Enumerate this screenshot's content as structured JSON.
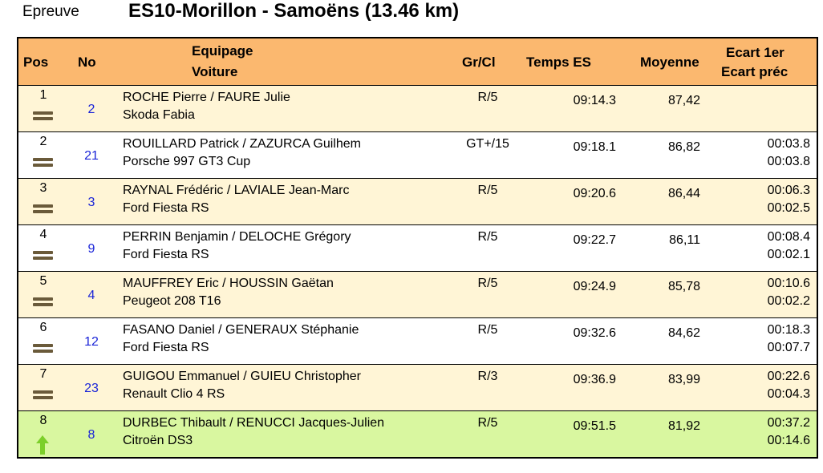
{
  "header": {
    "epreuve_label": "Epreuve",
    "stage_title": "ES10-Morillon - Samoëns (13.46 km)"
  },
  "columns": {
    "pos": "Pos",
    "no": "No",
    "crew": "Equipage",
    "car": "Voiture",
    "class": "Gr/Cl",
    "time": "Temps ES",
    "average": "Moyenne",
    "gap_first": "Ecart 1er",
    "gap_prev": "Ecart préc"
  },
  "colors": {
    "header_bg": "#fbb86f",
    "row_alt_bg": "#fff5d6",
    "row_gain_bg": "#d9f7a0",
    "number_link": "#1a24d8",
    "trend_equal": "#6a5a3a",
    "trend_up": "#7ccf2a"
  },
  "rows": [
    {
      "pos": "1",
      "no": "2",
      "crew": "ROCHE Pierre / FAURE Julie",
      "car": "Skoda Fabia",
      "class": "R/5",
      "time": "09:14.3",
      "average": "87,42",
      "gap_first": "",
      "gap_prev": "",
      "trend": "equal-icon"
    },
    {
      "pos": "2",
      "no": "21",
      "crew": "ROUILLARD Patrick / ZAZURCA Guilhem",
      "car": "Porsche 997 GT3 Cup",
      "class": "GT+/15",
      "time": "09:18.1",
      "average": "86,82",
      "gap_first": "00:03.8",
      "gap_prev": "00:03.8",
      "trend": "equal-icon"
    },
    {
      "pos": "3",
      "no": "3",
      "crew": "RAYNAL Frédéric / LAVIALE Jean-Marc",
      "car": "Ford Fiesta RS",
      "class": "R/5",
      "time": "09:20.6",
      "average": "86,44",
      "gap_first": "00:06.3",
      "gap_prev": "00:02.5",
      "trend": "equal-icon"
    },
    {
      "pos": "4",
      "no": "9",
      "crew": "PERRIN Benjamin / DELOCHE Grégory",
      "car": "Ford Fiesta RS",
      "class": "R/5",
      "time": "09:22.7",
      "average": "86,11",
      "gap_first": "00:08.4",
      "gap_prev": "00:02.1",
      "trend": "equal-icon"
    },
    {
      "pos": "5",
      "no": "4",
      "crew": "MAUFFREY Eric / HOUSSIN Gaëtan",
      "car": "Peugeot 208 T16",
      "class": "R/5",
      "time": "09:24.9",
      "average": "85,78",
      "gap_first": "00:10.6",
      "gap_prev": "00:02.2",
      "trend": "equal-icon"
    },
    {
      "pos": "6",
      "no": "12",
      "crew": "FASANO Daniel / GENERAUX Stéphanie",
      "car": "Ford Fiesta RS",
      "class": "R/5",
      "time": "09:32.6",
      "average": "84,62",
      "gap_first": "00:18.3",
      "gap_prev": "00:07.7",
      "trend": "equal-icon"
    },
    {
      "pos": "7",
      "no": "23",
      "crew": "GUIGOU Emmanuel / GUIEU Christopher",
      "car": "Renault Clio 4 RS",
      "class": "R/3",
      "time": "09:36.9",
      "average": "83,99",
      "gap_first": "00:22.6",
      "gap_prev": "00:04.3",
      "trend": "equal-icon"
    },
    {
      "pos": "8",
      "no": "8",
      "crew": "DURBEC Thibault / RENUCCI Jacques-Julien",
      "car": "Citroën DS3",
      "class": "R/5",
      "time": "09:51.5",
      "average": "81,92",
      "gap_first": "00:37.2",
      "gap_prev": "00:14.6",
      "trend": "arrow-up-icon"
    }
  ]
}
